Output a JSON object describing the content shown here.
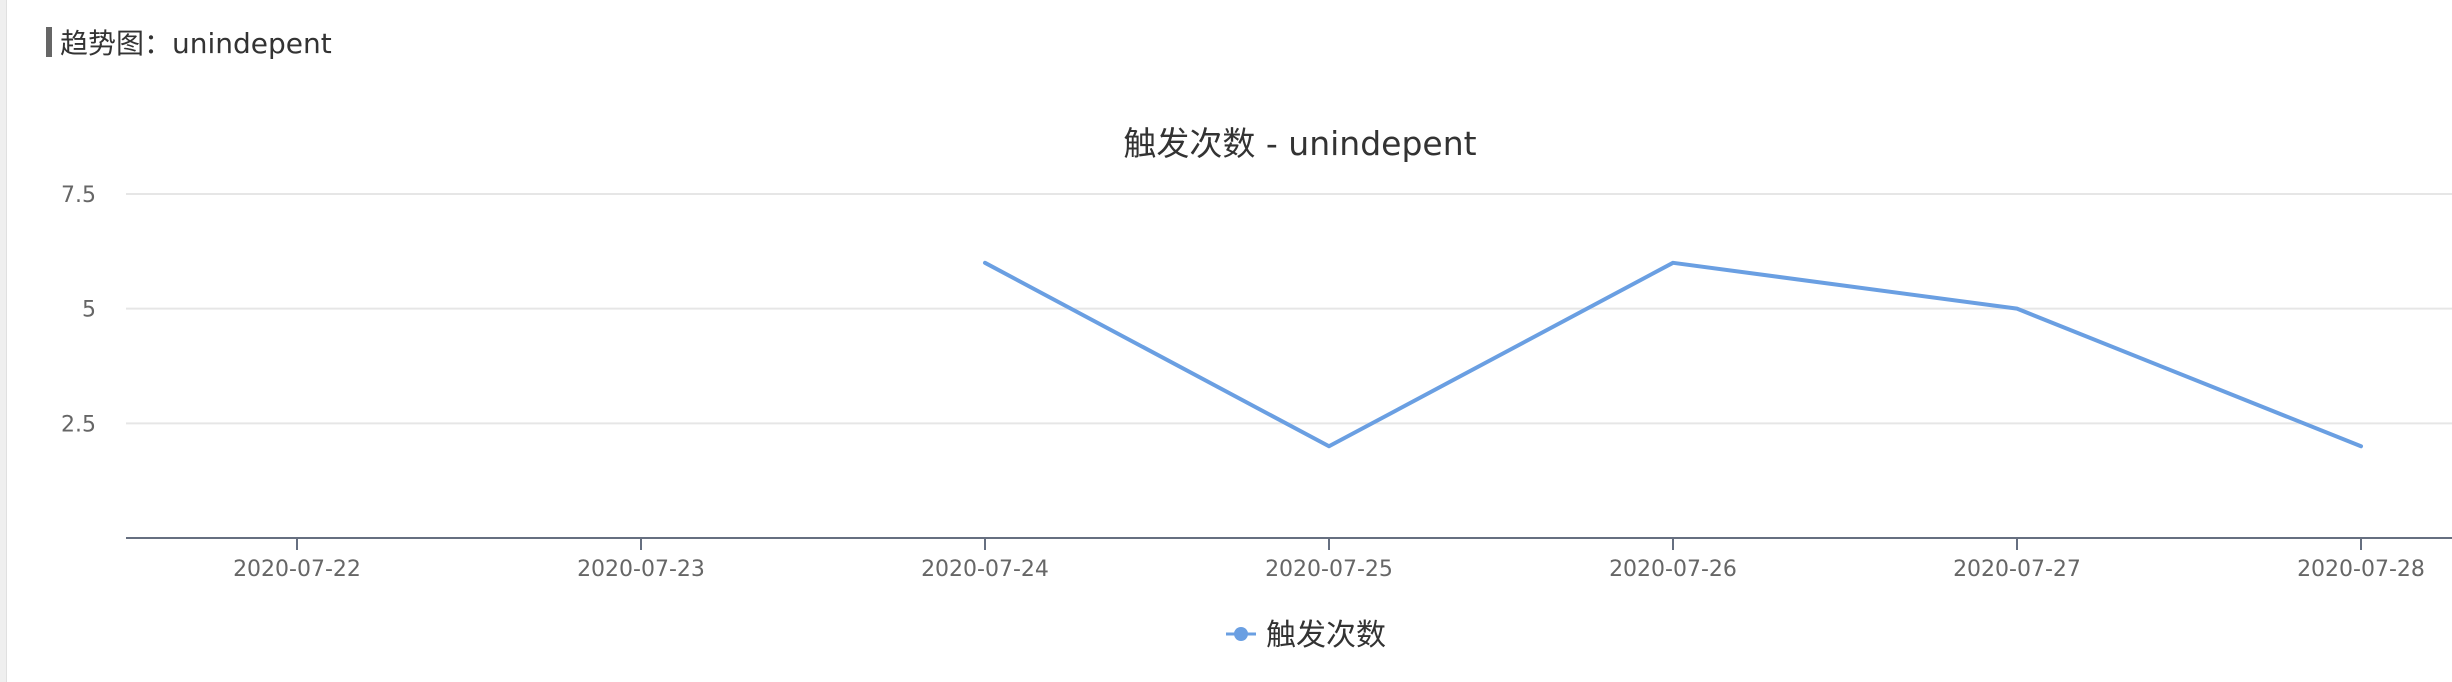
{
  "header": {
    "title": "趋势图：unindepent"
  },
  "chart_data": {
    "type": "line",
    "title": "触发次数 - unindepent",
    "xlabel": "",
    "ylabel": "",
    "x": [
      "2020-07-22",
      "2020-07-23",
      "2020-07-24",
      "2020-07-25",
      "2020-07-26",
      "2020-07-27",
      "2020-07-28"
    ],
    "yticks": [
      "2.5",
      "5",
      "7.5"
    ],
    "ylim": [
      0,
      7.5
    ],
    "series": [
      {
        "name": "触发次数",
        "values": [
          null,
          null,
          6,
          2,
          6,
          5,
          2
        ],
        "color": "#6a9fe2"
      }
    ],
    "grid": true,
    "legend_position": "bottom-center"
  }
}
